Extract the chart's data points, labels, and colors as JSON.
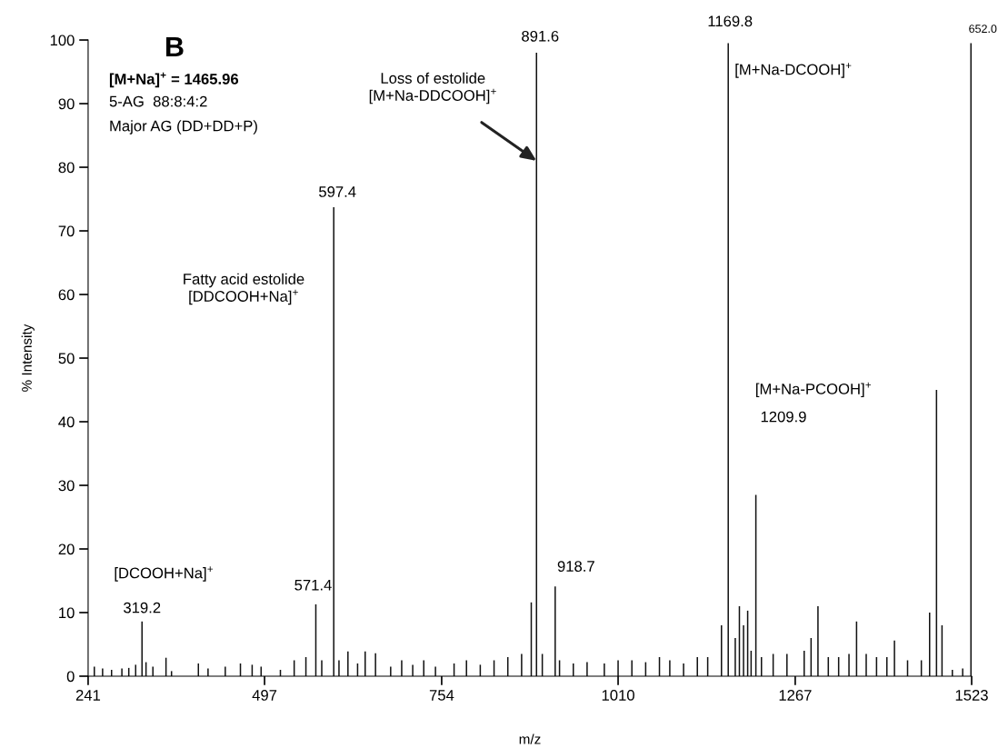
{
  "chart_data": {
    "type": "bar",
    "xlabel": "m/z",
    "ylabel": "% Intensity",
    "x": [
      250,
      262,
      275,
      290,
      300,
      310,
      319.2,
      325,
      335,
      354,
      362,
      401,
      415,
      440,
      462,
      479,
      492,
      520,
      540,
      557,
      571.4,
      580,
      597.4,
      605,
      618,
      632,
      643,
      658,
      680,
      696,
      712,
      728,
      745,
      772,
      790,
      810,
      830,
      850,
      870,
      884,
      891.6,
      900,
      918.7,
      925,
      945,
      965,
      990,
      1010,
      1030,
      1050,
      1070,
      1085,
      1105,
      1125,
      1140,
      1160,
      1169.8,
      1180,
      1186,
      1192,
      1198,
      1203,
      1209.9,
      1218,
      1235,
      1255,
      1280,
      1290,
      1300,
      1315,
      1330,
      1345,
      1356,
      1370,
      1385,
      1400,
      1411,
      1430,
      1450,
      1462,
      1472,
      1480,
      1495,
      1510,
      1522
    ],
    "values": [
      1.5,
      1.2,
      1.0,
      1.2,
      1.3,
      1.8,
      8.6,
      2.2,
      1.5,
      2.9,
      0.8,
      2.0,
      1.2,
      1.5,
      2.0,
      1.8,
      1.5,
      1.0,
      2.5,
      3.0,
      11.3,
      2.5,
      73.7,
      2.5,
      3.9,
      2.0,
      3.9,
      3.6,
      1.5,
      2.5,
      1.8,
      2.5,
      1.5,
      2.0,
      2.5,
      1.8,
      2.5,
      3.0,
      3.5,
      11.6,
      98,
      3.5,
      14.1,
      2.5,
      2.0,
      2.2,
      2.0,
      2.5,
      2.5,
      2.2,
      3.0,
      2.5,
      2.0,
      3.0,
      3.0,
      8,
      99.5,
      6,
      11,
      8,
      10.3,
      4,
      28.5,
      3,
      3.5,
      3.5,
      4.0,
      6,
      11,
      3,
      3,
      3.5,
      8.6,
      3.5,
      3,
      3,
      5.6,
      2.5,
      2.5,
      10,
      45,
      8,
      1.0,
      1.2,
      99.5
    ],
    "color": "#111111",
    "xlim": [
      241,
      1523
    ],
    "xticks": [
      241,
      497,
      754,
      1010,
      1267,
      1523
    ],
    "ylim": [
      0,
      100
    ],
    "yticks": [
      0,
      10,
      20,
      30,
      40,
      50,
      60,
      70,
      80,
      90,
      100
    ],
    "annotations": [
      "B",
      "[M+Na]$^{+}$ = 1465.96",
      "5-AG  88:8:4:2",
      "Major AG (DD+DD+P)",
      {
        "text": "319.2",
        "x": 319.2,
        "y": 8.6
      },
      {
        "text": "[DCOOH+Na]$^{+}$",
        "x": 319.2,
        "y": 8.6
      },
      {
        "text": "571.4",
        "x": 571.4,
        "y": 11.3
      },
      {
        "text": "597.4",
        "x": 597.4,
        "y": 73.7
      },
      "Fatty acid estolide\n[DDCOOH+Na]$^{+}$",
      {
        "text": "891.6",
        "x": 891.6,
        "y": 98
      },
      {
        "text": "Loss of estolide\n[M+Na-DDCOOH]$^{+}$",
        "x": 891.6,
        "y": 81
      },
      {
        "text": "918.7",
        "x": 918.7,
        "y": 14.1
      },
      {
        "text": "1169.8",
        "x": 1169.8,
        "y": 99.5
      },
      {
        "text": "[M+Na-DCOOH]$^{+}$",
        "x": 1169.8,
        "y": 99.5
      },
      "[M+Na-PCOOH]$^{+}$",
      "1209.9",
      {
        "text": "652.0",
        "x": 1522,
        "y": 99.5
      }
    ]
  }
}
